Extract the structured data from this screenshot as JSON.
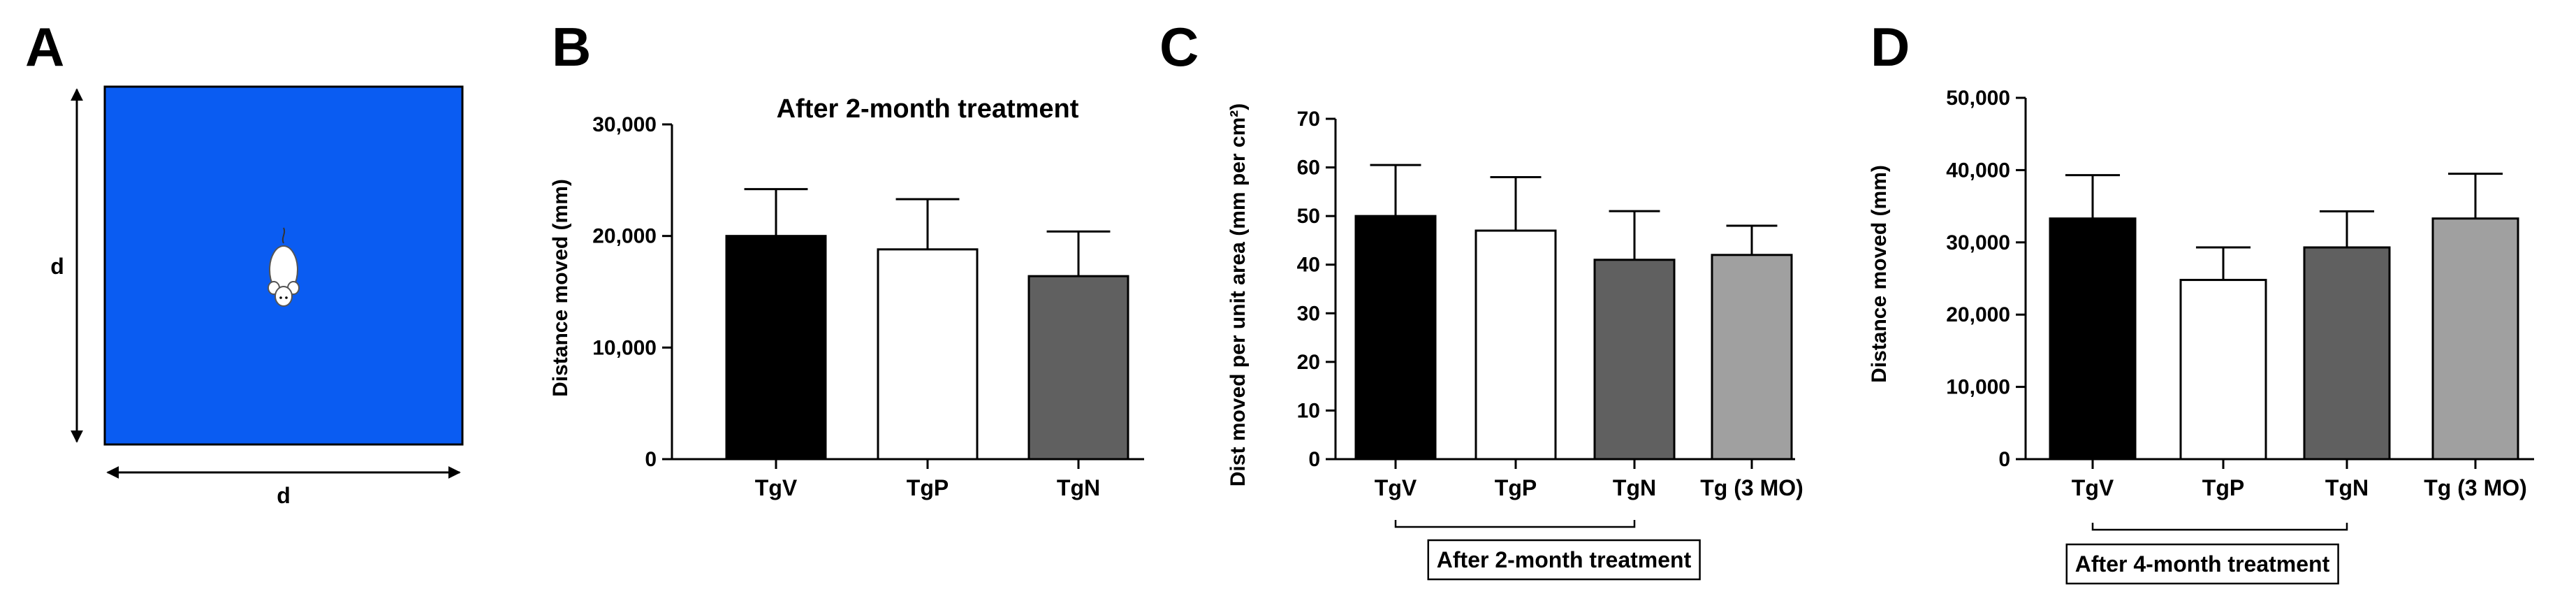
{
  "panels": [
    {
      "letter": "A"
    },
    {
      "letter": "B"
    },
    {
      "letter": "C"
    },
    {
      "letter": "D"
    }
  ],
  "arena": {
    "color": "#0a5cf2",
    "width_label": "d",
    "height_label": "d",
    "animal_icon": "mouse-icon"
  },
  "chart_data": [
    {
      "panel": "B",
      "type": "bar",
      "title": "After 2-month treatment",
      "ylabel": "Distance moved (mm)",
      "xlabel": "",
      "categories": [
        "TgV",
        "TgP",
        "TgN"
      ],
      "values": [
        20000,
        18800,
        16400
      ],
      "errors": [
        4200,
        4500,
        4000
      ],
      "colors": [
        "#000000",
        "#ffffff",
        "#606060"
      ],
      "ylim": [
        0,
        30000
      ],
      "yticks": [
        0,
        10000,
        20000,
        30000
      ],
      "ytick_labels": [
        "0",
        "10,000",
        "20,000",
        "30,000"
      ],
      "grid": false,
      "legend": "none"
    },
    {
      "panel": "C",
      "type": "bar",
      "title": "",
      "ylabel": "Dist moved per unit area (mm per cm²)",
      "xlabel": "",
      "categories": [
        "TgV",
        "TgP",
        "TgN",
        "Tg (3 MO)"
      ],
      "values": [
        50,
        47,
        41,
        42
      ],
      "errors": [
        10.5,
        11,
        10,
        6
      ],
      "colors": [
        "#000000",
        "#ffffff",
        "#606060",
        "#a0a0a0"
      ],
      "ylim": [
        0,
        70
      ],
      "yticks": [
        0,
        10,
        20,
        30,
        40,
        50,
        60,
        70
      ],
      "ytick_labels": [
        "0",
        "10",
        "20",
        "30",
        "40",
        "50",
        "60",
        "70"
      ],
      "grid": false,
      "legend": "none",
      "bracket_label": "After 2-month treatment"
    },
    {
      "panel": "D",
      "type": "bar",
      "title": "",
      "ylabel": "Distance moved (mm)",
      "xlabel": "",
      "categories": [
        "TgV",
        "TgP",
        "TgN",
        "Tg (3 MO)"
      ],
      "values": [
        33300,
        24800,
        29300,
        33300
      ],
      "errors": [
        6000,
        4500,
        5000,
        6200
      ],
      "colors": [
        "#000000",
        "#ffffff",
        "#606060",
        "#a0a0a0"
      ],
      "ylim": [
        0,
        50000
      ],
      "yticks": [
        0,
        10000,
        20000,
        30000,
        40000,
        50000
      ],
      "ytick_labels": [
        "0",
        "10,000",
        "20,000",
        "30,000",
        "40,000",
        "50,000"
      ],
      "grid": false,
      "legend": "none",
      "bracket_label": "After 4-month treatment"
    }
  ]
}
